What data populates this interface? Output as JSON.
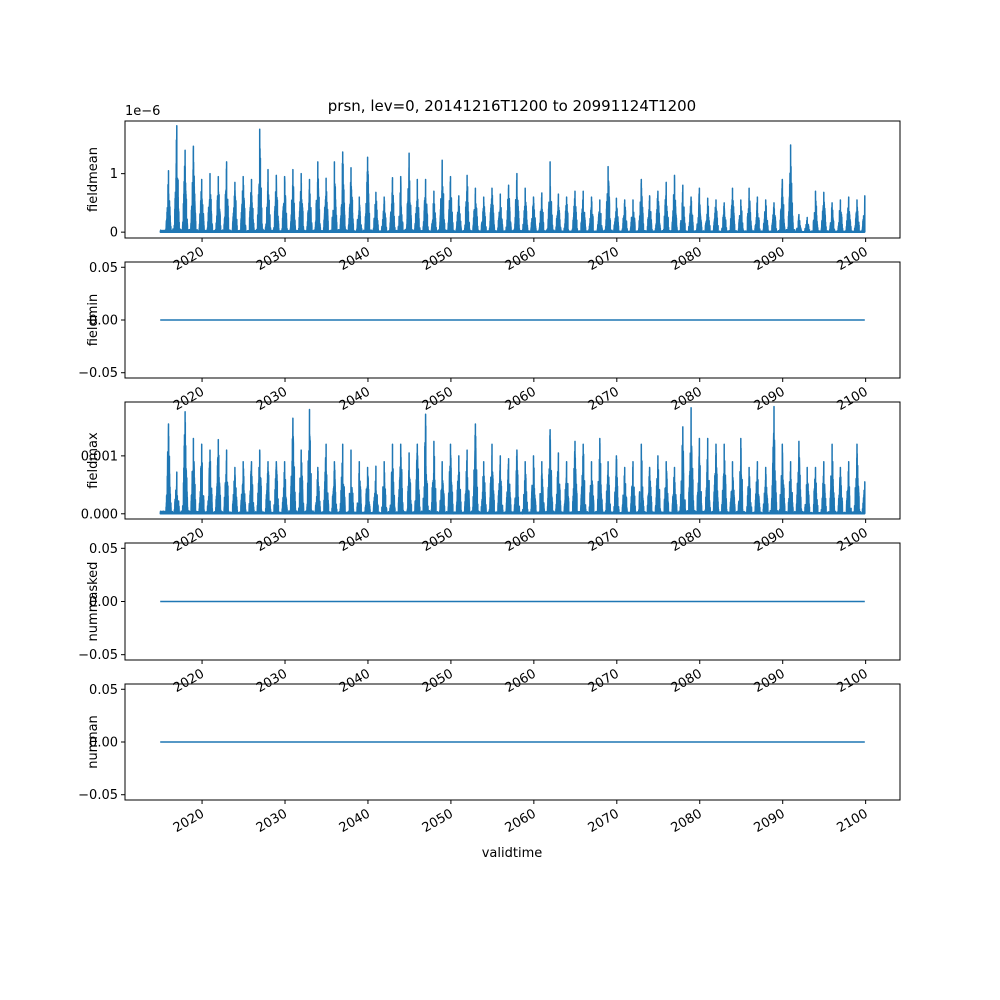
{
  "chart_data": {
    "title": "prsn, lev=0, 20141216T1200 to 20991124T1200",
    "xlabel": "validtime",
    "x_range": [
      "2014-12-16",
      "2099-11-24"
    ],
    "x_ticks": [
      "2020",
      "2030",
      "2040",
      "2050",
      "2060",
      "2070",
      "2080",
      "2090",
      "2100"
    ],
    "color": "#1f77b4",
    "panels": [
      {
        "type": "line",
        "ylabel": "fieldmean",
        "offset_text": "1e−6",
        "yticks": [
          "0",
          "1"
        ],
        "ylim": [
          -0.1,
          1.9
        ],
        "peaks": [
          {
            "x": "2015-12-15",
            "y": 1.05
          },
          {
            "x": "2016-12-15",
            "y": 1.82
          },
          {
            "x": "2017-12-15",
            "y": 1.4
          },
          {
            "x": "2018-12-15",
            "y": 1.47
          },
          {
            "x": "2019-12-15",
            "y": 0.9
          },
          {
            "x": "2020-12-15",
            "y": 1.0
          },
          {
            "x": "2021-12-15",
            "y": 0.95
          },
          {
            "x": "2022-12-15",
            "y": 1.2
          },
          {
            "x": "2023-12-15",
            "y": 0.85
          },
          {
            "x": "2024-12-15",
            "y": 0.95
          },
          {
            "x": "2025-12-15",
            "y": 0.9
          },
          {
            "x": "2026-12-15",
            "y": 1.76
          },
          {
            "x": "2027-12-15",
            "y": 1.07
          },
          {
            "x": "2028-12-15",
            "y": 0.97
          },
          {
            "x": "2029-12-15",
            "y": 0.95
          },
          {
            "x": "2030-12-15",
            "y": 1.07
          },
          {
            "x": "2031-12-15",
            "y": 1.0
          },
          {
            "x": "2032-12-15",
            "y": 0.9
          },
          {
            "x": "2033-12-15",
            "y": 1.2
          },
          {
            "x": "2034-12-15",
            "y": 0.92
          },
          {
            "x": "2035-12-15",
            "y": 1.2
          },
          {
            "x": "2036-12-15",
            "y": 1.37
          },
          {
            "x": "2037-12-15",
            "y": 1.1
          },
          {
            "x": "2038-12-15",
            "y": 0.6
          },
          {
            "x": "2039-12-15",
            "y": 1.28
          },
          {
            "x": "2040-12-15",
            "y": 0.68
          },
          {
            "x": "2041-12-15",
            "y": 0.6
          },
          {
            "x": "2042-12-15",
            "y": 0.93
          },
          {
            "x": "2043-12-15",
            "y": 0.95
          },
          {
            "x": "2044-12-15",
            "y": 1.35
          },
          {
            "x": "2045-12-15",
            "y": 0.9
          },
          {
            "x": "2046-12-15",
            "y": 0.9
          },
          {
            "x": "2047-12-15",
            "y": 0.7
          },
          {
            "x": "2048-12-15",
            "y": 1.23
          },
          {
            "x": "2049-12-15",
            "y": 0.95
          },
          {
            "x": "2050-12-15",
            "y": 0.62
          },
          {
            "x": "2051-12-15",
            "y": 0.97
          },
          {
            "x": "2052-12-15",
            "y": 0.75
          },
          {
            "x": "2053-12-15",
            "y": 0.6
          },
          {
            "x": "2054-12-15",
            "y": 0.75
          },
          {
            "x": "2055-12-15",
            "y": 0.65
          },
          {
            "x": "2056-12-15",
            "y": 0.8
          },
          {
            "x": "2057-12-15",
            "y": 1.0
          },
          {
            "x": "2058-12-15",
            "y": 0.75
          },
          {
            "x": "2059-12-15",
            "y": 0.6
          },
          {
            "x": "2060-12-15",
            "y": 0.67
          },
          {
            "x": "2061-12-15",
            "y": 1.2
          },
          {
            "x": "2062-12-15",
            "y": 0.65
          },
          {
            "x": "2063-12-15",
            "y": 0.6
          },
          {
            "x": "2064-12-15",
            "y": 0.7
          },
          {
            "x": "2065-12-15",
            "y": 0.7
          },
          {
            "x": "2066-12-15",
            "y": 0.6
          },
          {
            "x": "2067-12-15",
            "y": 0.55
          },
          {
            "x": "2068-12-15",
            "y": 1.12
          },
          {
            "x": "2069-12-15",
            "y": 0.58
          },
          {
            "x": "2070-12-15",
            "y": 0.55
          },
          {
            "x": "2071-12-15",
            "y": 0.55
          },
          {
            "x": "2072-12-15",
            "y": 0.9
          },
          {
            "x": "2073-12-15",
            "y": 0.62
          },
          {
            "x": "2074-12-15",
            "y": 0.7
          },
          {
            "x": "2075-12-15",
            "y": 0.85
          },
          {
            "x": "2076-12-15",
            "y": 0.97
          },
          {
            "x": "2077-12-15",
            "y": 0.8
          },
          {
            "x": "2078-12-15",
            "y": 0.6
          },
          {
            "x": "2079-12-15",
            "y": 0.75
          },
          {
            "x": "2080-12-15",
            "y": 0.58
          },
          {
            "x": "2081-12-15",
            "y": 0.55
          },
          {
            "x": "2082-12-15",
            "y": 0.5
          },
          {
            "x": "2083-12-15",
            "y": 0.75
          },
          {
            "x": "2084-12-15",
            "y": 0.55
          },
          {
            "x": "2085-12-15",
            "y": 0.75
          },
          {
            "x": "2086-12-15",
            "y": 0.6
          },
          {
            "x": "2087-12-15",
            "y": 0.55
          },
          {
            "x": "2088-12-15",
            "y": 0.5
          },
          {
            "x": "2089-12-15",
            "y": 0.9
          },
          {
            "x": "2090-12-15",
            "y": 1.49
          },
          {
            "x": "2091-12-15",
            "y": 0.3
          },
          {
            "x": "2092-12-15",
            "y": 0.25
          },
          {
            "x": "2093-12-15",
            "y": 0.7
          },
          {
            "x": "2094-12-15",
            "y": 0.68
          },
          {
            "x": "2095-12-15",
            "y": 0.5
          },
          {
            "x": "2096-12-15",
            "y": 0.55
          },
          {
            "x": "2097-12-15",
            "y": 0.6
          },
          {
            "x": "2098-12-15",
            "y": 0.55
          },
          {
            "x": "2099-11-24",
            "y": 0.62
          }
        ]
      },
      {
        "type": "line",
        "ylabel": "fieldmin",
        "yticks": [
          "−0.05",
          "0.00",
          "0.05"
        ],
        "ylim": [
          -0.055,
          0.055
        ],
        "constant": 0
      },
      {
        "type": "line",
        "ylabel": "fieldmax",
        "yticks": [
          "0.000",
          "0.001"
        ],
        "ylim": [
          -9e-05,
          0.00193
        ],
        "peaks": [
          {
            "x": "2015-12-15",
            "y": 0.00155
          },
          {
            "x": "2016-12-15",
            "y": 0.00072
          },
          {
            "x": "2017-12-15",
            "y": 0.00176
          },
          {
            "x": "2018-12-15",
            "y": 0.0013
          },
          {
            "x": "2019-12-15",
            "y": 0.0012
          },
          {
            "x": "2020-12-15",
            "y": 0.0011
          },
          {
            "x": "2021-12-15",
            "y": 0.00128
          },
          {
            "x": "2022-12-15",
            "y": 0.0011
          },
          {
            "x": "2023-12-15",
            "y": 0.0008
          },
          {
            "x": "2024-12-15",
            "y": 0.0009
          },
          {
            "x": "2025-12-15",
            "y": 0.0009
          },
          {
            "x": "2026-12-15",
            "y": 0.0011
          },
          {
            "x": "2027-12-15",
            "y": 0.0009
          },
          {
            "x": "2028-12-15",
            "y": 0.0009
          },
          {
            "x": "2029-12-15",
            "y": 0.0009
          },
          {
            "x": "2030-12-15",
            "y": 0.00165
          },
          {
            "x": "2031-12-15",
            "y": 0.0011
          },
          {
            "x": "2032-12-15",
            "y": 0.0018
          },
          {
            "x": "2033-12-15",
            "y": 0.0008
          },
          {
            "x": "2034-12-15",
            "y": 0.0012
          },
          {
            "x": "2035-12-15",
            "y": 0.0009
          },
          {
            "x": "2036-12-15",
            "y": 0.0012
          },
          {
            "x": "2037-12-15",
            "y": 0.0011
          },
          {
            "x": "2038-12-15",
            "y": 0.0009
          },
          {
            "x": "2039-12-15",
            "y": 0.0008
          },
          {
            "x": "2040-12-15",
            "y": 0.00082
          },
          {
            "x": "2041-12-15",
            "y": 0.0009
          },
          {
            "x": "2042-12-15",
            "y": 0.0012
          },
          {
            "x": "2043-12-15",
            "y": 0.0012
          },
          {
            "x": "2044-12-15",
            "y": 0.00105
          },
          {
            "x": "2045-12-15",
            "y": 0.0012
          },
          {
            "x": "2046-12-15",
            "y": 0.00172
          },
          {
            "x": "2047-12-15",
            "y": 0.00125
          },
          {
            "x": "2048-12-15",
            "y": 0.0009
          },
          {
            "x": "2049-12-15",
            "y": 0.0012
          },
          {
            "x": "2050-12-15",
            "y": 0.001
          },
          {
            "x": "2051-12-15",
            "y": 0.0011
          },
          {
            "x": "2052-12-15",
            "y": 0.00155
          },
          {
            "x": "2053-12-15",
            "y": 0.0009
          },
          {
            "x": "2054-12-15",
            "y": 0.0012
          },
          {
            "x": "2055-12-15",
            "y": 0.001
          },
          {
            "x": "2056-12-15",
            "y": 0.00095
          },
          {
            "x": "2057-12-15",
            "y": 0.0011
          },
          {
            "x": "2058-12-15",
            "y": 0.0009
          },
          {
            "x": "2059-12-15",
            "y": 0.001
          },
          {
            "x": "2060-12-15",
            "y": 0.0009
          },
          {
            "x": "2061-12-15",
            "y": 0.00145
          },
          {
            "x": "2062-12-15",
            "y": 0.00105
          },
          {
            "x": "2063-12-15",
            "y": 0.0009
          },
          {
            "x": "2064-12-15",
            "y": 0.00125
          },
          {
            "x": "2065-12-15",
            "y": 0.0012
          },
          {
            "x": "2066-12-15",
            "y": 0.0009
          },
          {
            "x": "2067-12-15",
            "y": 0.0013
          },
          {
            "x": "2068-12-15",
            "y": 0.0009
          },
          {
            "x": "2069-12-15",
            "y": 0.001
          },
          {
            "x": "2070-12-15",
            "y": 0.0008
          },
          {
            "x": "2071-12-15",
            "y": 0.0009
          },
          {
            "x": "2072-12-15",
            "y": 0.0012
          },
          {
            "x": "2073-12-15",
            "y": 0.0008
          },
          {
            "x": "2074-12-15",
            "y": 0.001
          },
          {
            "x": "2075-12-15",
            "y": 0.0009
          },
          {
            "x": "2076-12-15",
            "y": 0.0008
          },
          {
            "x": "2077-12-15",
            "y": 0.0015
          },
          {
            "x": "2078-12-15",
            "y": 0.00183
          },
          {
            "x": "2079-12-15",
            "y": 0.0013
          },
          {
            "x": "2080-12-15",
            "y": 0.0013
          },
          {
            "x": "2081-12-15",
            "y": 0.0012
          },
          {
            "x": "2082-12-15",
            "y": 0.0012
          },
          {
            "x": "2083-12-15",
            "y": 0.0009
          },
          {
            "x": "2084-12-15",
            "y": 0.0013
          },
          {
            "x": "2085-12-15",
            "y": 0.0008
          },
          {
            "x": "2086-12-15",
            "y": 0.0009
          },
          {
            "x": "2087-12-15",
            "y": 0.0008
          },
          {
            "x": "2088-12-15",
            "y": 0.00185
          },
          {
            "x": "2089-12-15",
            "y": 0.0012
          },
          {
            "x": "2090-12-15",
            "y": 0.0009
          },
          {
            "x": "2091-12-15",
            "y": 0.00125
          },
          {
            "x": "2092-12-15",
            "y": 0.0008
          },
          {
            "x": "2093-12-15",
            "y": 0.0008
          },
          {
            "x": "2094-12-15",
            "y": 0.0009
          },
          {
            "x": "2095-12-15",
            "y": 0.0012
          },
          {
            "x": "2096-12-15",
            "y": 0.0008
          },
          {
            "x": "2097-12-15",
            "y": 0.0009
          },
          {
            "x": "2098-12-15",
            "y": 0.0012
          },
          {
            "x": "2099-11-24",
            "y": 0.00055
          }
        ]
      },
      {
        "type": "line",
        "ylabel": "nummasked",
        "yticks": [
          "−0.05",
          "0.00",
          "0.05"
        ],
        "ylim": [
          -0.055,
          0.055
        ],
        "constant": 0
      },
      {
        "type": "line",
        "ylabel": "numnan",
        "yticks": [
          "−0.05",
          "0.00",
          "0.05"
        ],
        "ylim": [
          -0.055,
          0.055
        ],
        "constant": 0
      }
    ]
  }
}
